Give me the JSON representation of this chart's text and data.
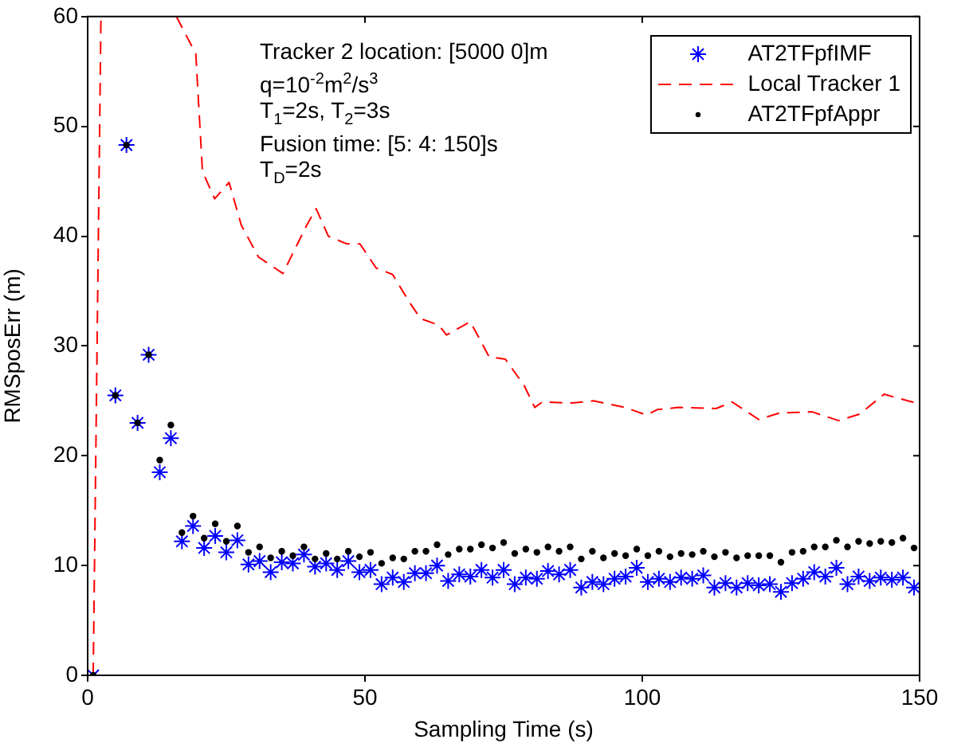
{
  "chart_data": {
    "type": "scatter",
    "xlabel": "Sampling Time (s)",
    "ylabel": "RMSposErr (m)",
    "xlim": [
      0,
      150
    ],
    "xticks": [
      0,
      50,
      100,
      150
    ],
    "ylim": [
      0,
      60
    ],
    "yticks": [
      0,
      10,
      20,
      30,
      40,
      50,
      60
    ],
    "grid": false,
    "legend": "top right",
    "annotations": [
      "Tracker 2 location: [5000 0]m",
      "q=10$^{-2}$m$^{2}$/s$^{3}$",
      "T$_{1}$=2s, T$_{2}$=3s",
      "Fusion time: [5: 4: 150]s",
      "T$_{D}$=2s"
    ],
    "series": [
      {
        "name": "AT2TFpfIMF",
        "type": "scatter",
        "marker": "cross",
        "color": "#0000ff",
        "x": [
          1,
          5,
          7,
          9,
          11,
          13,
          15,
          17,
          19,
          21,
          23,
          25,
          27,
          29,
          31,
          33,
          35,
          37,
          39,
          41,
          43,
          45,
          47,
          49,
          51,
          53,
          55,
          57,
          59,
          61,
          63,
          65,
          67,
          69,
          71,
          73,
          75,
          77,
          79,
          81,
          83,
          85,
          87,
          89,
          91,
          93,
          95,
          97,
          99,
          101,
          103,
          105,
          107,
          109,
          111,
          113,
          115,
          117,
          119,
          121,
          123,
          125,
          127,
          129,
          131,
          133,
          135,
          137,
          139,
          141,
          143,
          145,
          147,
          149
        ],
        "values": [
          0,
          25.5,
          48.3,
          23.0,
          29.2,
          18.5,
          21.6,
          12.2,
          13.6,
          11.6,
          12.7,
          11.2,
          12.3,
          10.1,
          10.4,
          9.4,
          10.3,
          10.2,
          11.0,
          9.9,
          10.2,
          9.6,
          10.4,
          9.4,
          9.6,
          8.3,
          8.9,
          8.5,
          9.3,
          9.3,
          10.0,
          8.6,
          9.2,
          9.0,
          9.6,
          8.9,
          9.6,
          8.3,
          8.9,
          8.8,
          9.5,
          9.2,
          9.6,
          8.0,
          8.5,
          8.3,
          8.8,
          9.0,
          9.8,
          8.5,
          8.8,
          8.5,
          8.9,
          8.8,
          9.1,
          8.0,
          8.4,
          8.0,
          8.4,
          8.2,
          8.3,
          7.6,
          8.4,
          8.8,
          9.4,
          9.0,
          9.8,
          8.3,
          9.0,
          8.6,
          8.9,
          8.7,
          8.9,
          8.0
        ]
      },
      {
        "name": "Local Tracker 1",
        "type": "line",
        "marker": "none",
        "line_style": "dashed",
        "color": "#ff0000",
        "x": [
          1,
          2.4,
          9,
          16,
          19.5,
          20.7,
          22.9,
          25.5,
          27.7,
          30.8,
          35.2,
          39.5,
          41.2,
          43.4,
          46.7,
          49.1,
          52,
          55,
          58,
          60,
          63.3,
          64.7,
          69,
          72.4,
          75.3,
          78.7,
          80.6,
          82,
          87.3,
          91.2,
          96.9,
          100.8,
          102.7,
          106.5,
          113.3,
          116.2,
          121,
          124.8,
          130.6,
          135.4,
          139.2,
          143.6,
          149.3
        ],
        "values": [
          0,
          60,
          null,
          60,
          56.6,
          45.9,
          43.4,
          44.9,
          41.0,
          38.1,
          36.6,
          41.0,
          42.5,
          40.0,
          39.3,
          39.3,
          37.1,
          36.5,
          34,
          32.5,
          31.9,
          31.0,
          32.2,
          29.0,
          28.8,
          26.4,
          24.4,
          24.9,
          24.8,
          25.0,
          24.4,
          23.7,
          24.2,
          24.4,
          24.3,
          24.9,
          23.3,
          23.9,
          24.0,
          23.2,
          23.8,
          25.6,
          24.8
        ]
      },
      {
        "name": "AT2TFpfAppr",
        "type": "scatter",
        "marker": "circle",
        "color": "#000000",
        "x": [
          1,
          5,
          7,
          9,
          11,
          13,
          15,
          17,
          19,
          21,
          23,
          25,
          27,
          29,
          31,
          33,
          35,
          37,
          39,
          41,
          43,
          45,
          47,
          49,
          51,
          53,
          55,
          57,
          59,
          61,
          63,
          65,
          67,
          69,
          71,
          73,
          75,
          77,
          79,
          81,
          83,
          85,
          87,
          89,
          91,
          93,
          95,
          97,
          99,
          101,
          103,
          105,
          107,
          109,
          111,
          113,
          115,
          117,
          119,
          121,
          123,
          125,
          127,
          129,
          131,
          133,
          135,
          137,
          139,
          141,
          143,
          145,
          147,
          149
        ],
        "values": [
          0,
          25.5,
          48.3,
          23.0,
          29.2,
          19.6,
          22.8,
          13.0,
          14.5,
          12.5,
          13.8,
          12.2,
          13.6,
          11.2,
          11.7,
          10.7,
          11.3,
          10.9,
          11.7,
          10.6,
          11.1,
          10.6,
          11.3,
          10.8,
          11.2,
          10.2,
          10.7,
          10.6,
          11.3,
          11.3,
          11.9,
          11.0,
          11.5,
          11.5,
          11.9,
          11.6,
          12.1,
          11.1,
          11.5,
          11.2,
          11.7,
          11.3,
          11.7,
          10.6,
          11.3,
          10.7,
          11.1,
          10.9,
          11.5,
          10.9,
          11.3,
          10.8,
          11.1,
          11.0,
          11.3,
          10.8,
          11.2,
          10.7,
          10.9,
          10.9,
          10.9,
          10.3,
          11.2,
          11.3,
          11.7,
          11.7,
          12.3,
          11.7,
          12.2,
          12.0,
          12.2,
          12.1,
          12.5,
          11.6
        ]
      }
    ]
  }
}
